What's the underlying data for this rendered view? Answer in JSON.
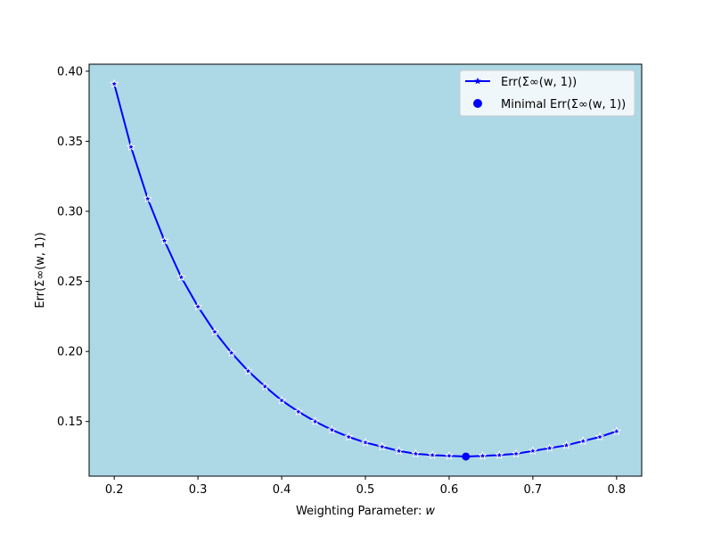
{
  "chart_data": {
    "type": "line",
    "title": "",
    "xlabel_prefix": "Weighting Parameter: ",
    "xlabel_var": "w",
    "ylabel": "Err(Σ∞(w, 1))",
    "xlim": [
      0.17,
      0.83
    ],
    "ylim": [
      0.111,
      0.405
    ],
    "xticks": [
      0.2,
      0.3,
      0.4,
      0.5,
      0.6,
      0.7,
      0.8
    ],
    "yticks": [
      0.15,
      0.2,
      0.25,
      0.3,
      0.35,
      0.4
    ],
    "xtick_labels": [
      "0.2",
      "0.3",
      "0.4",
      "0.5",
      "0.6",
      "0.7",
      "0.8"
    ],
    "ytick_labels": [
      "0.15",
      "0.20",
      "0.25",
      "0.30",
      "0.35",
      "0.40"
    ],
    "grid": false,
    "plot_background": "#add8e6",
    "legend_position": "top-right",
    "series": [
      {
        "name": "Err(Σ∞(w, 1))",
        "color": "#0000ff",
        "marker": "star",
        "x": [
          0.2,
          0.22,
          0.24,
          0.26,
          0.28,
          0.3,
          0.32,
          0.34,
          0.36,
          0.38,
          0.4,
          0.42,
          0.44,
          0.46,
          0.48,
          0.5,
          0.52,
          0.54,
          0.56,
          0.58,
          0.6,
          0.62,
          0.64,
          0.66,
          0.68,
          0.7,
          0.72,
          0.74,
          0.76,
          0.78,
          0.8
        ],
        "y": [
          0.391,
          0.346,
          0.309,
          0.279,
          0.253,
          0.232,
          0.214,
          0.199,
          0.186,
          0.175,
          0.165,
          0.157,
          0.15,
          0.144,
          0.139,
          0.135,
          0.132,
          0.129,
          0.127,
          0.126,
          0.1255,
          0.125,
          0.1255,
          0.126,
          0.127,
          0.129,
          0.131,
          0.133,
          0.136,
          0.139,
          0.143
        ]
      }
    ],
    "minimum_point": {
      "name": "Minimal Err(Σ∞(w, 1))",
      "color": "#0000ff",
      "x": 0.62,
      "y": 0.125
    }
  }
}
